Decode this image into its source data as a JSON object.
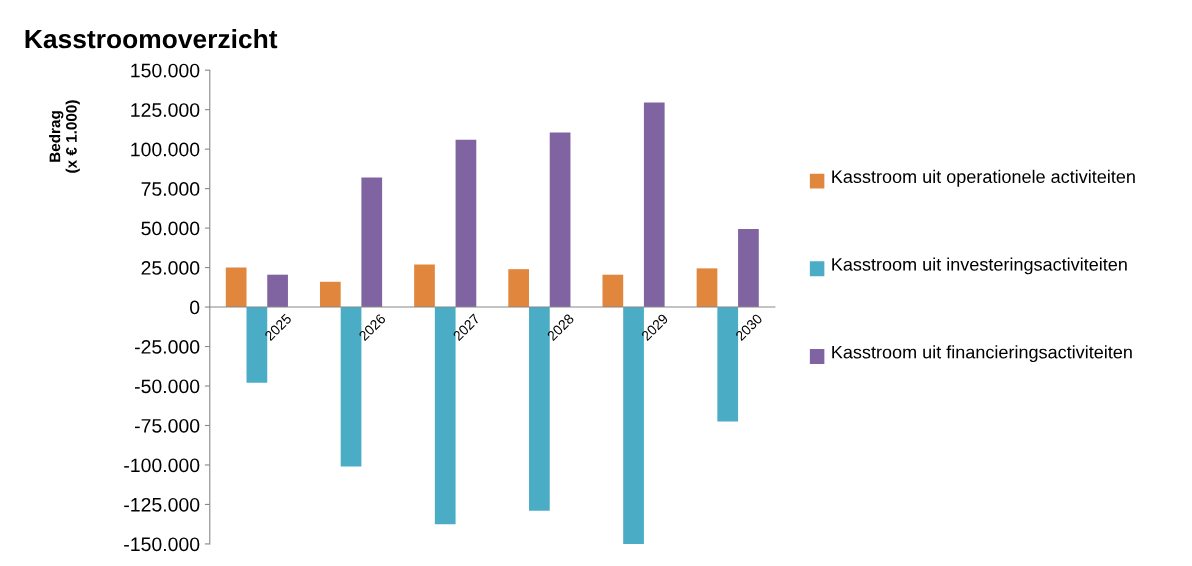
{
  "chart_data": {
    "type": "bar",
    "title": "Kasstroomoverzicht",
    "ylabel": "Bedrag\n(x € 1.000)",
    "categories": [
      "2025",
      "2026",
      "2027",
      "2028",
      "2029",
      "2030"
    ],
    "series": [
      {
        "name": "Kasstroom uit operationele activiteiten",
        "color": "#e0873d",
        "values": [
          25000,
          16000,
          27000,
          24000,
          20500,
          24500
        ]
      },
      {
        "name": "Kasstroom uit investeringsactiviteiten",
        "color": "#4bacc6",
        "values": [
          -48000,
          -101000,
          -137500,
          -129000,
          -150000,
          -72500
        ]
      },
      {
        "name": "Kasstroom uit financieringsactiviteiten",
        "color": "#8064a2",
        "values": [
          20500,
          82000,
          106000,
          110500,
          129500,
          49500
        ]
      }
    ],
    "ylim": [
      -150000,
      150000
    ],
    "yticks": [
      {
        "value": -150000,
        "label": "-150.000"
      },
      {
        "value": -125000,
        "label": "-125.000"
      },
      {
        "value": -100000,
        "label": "-100.000"
      },
      {
        "value": -75000,
        "label": "-75.000"
      },
      {
        "value": -50000,
        "label": "-50.000"
      },
      {
        "value": -25000,
        "label": "-25.000"
      },
      0,
      {
        "value": 25000,
        "label": "25.000"
      },
      {
        "value": 50000,
        "label": "50.000"
      },
      {
        "value": 75000,
        "label": "75.000"
      },
      {
        "value": 100000,
        "label": "100.000"
      },
      {
        "value": 125000,
        "label": "125.000"
      },
      {
        "value": 150000,
        "label": "150.000"
      }
    ],
    "grid": false,
    "legend": "right"
  }
}
